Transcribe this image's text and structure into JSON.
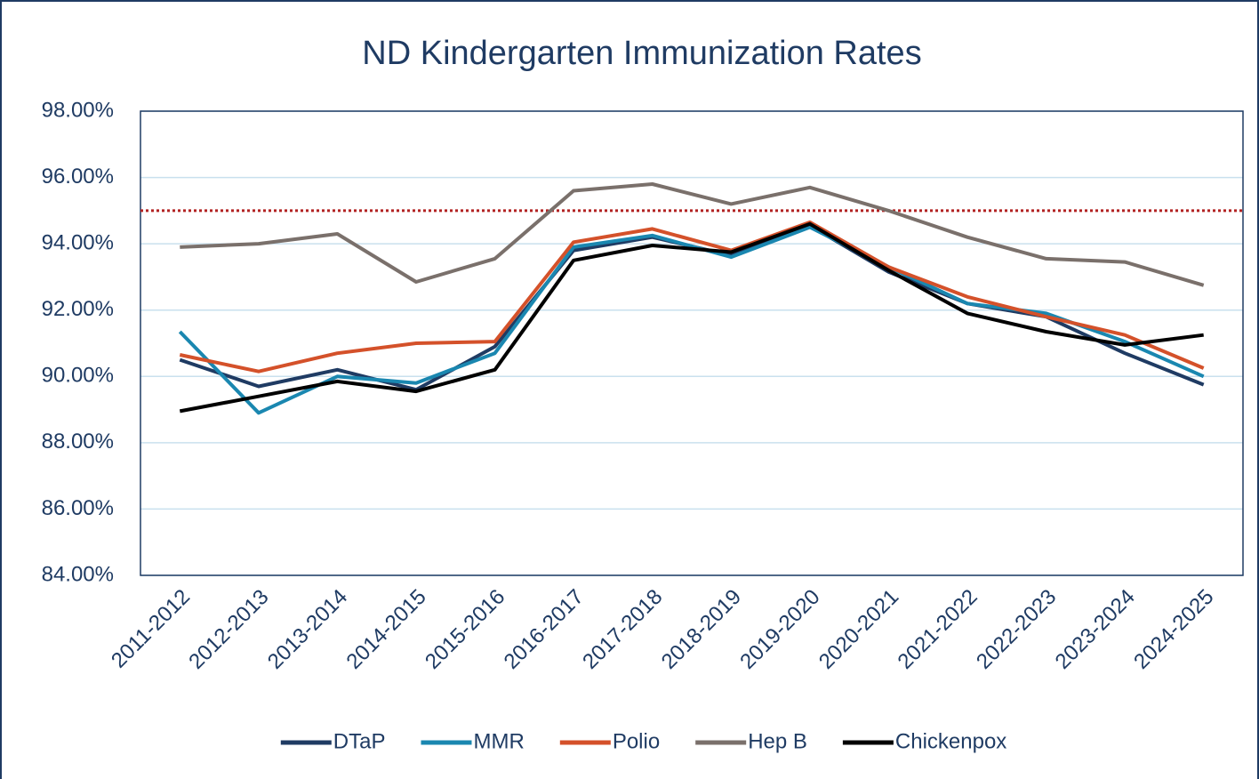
{
  "chart_data": {
    "type": "line",
    "title": "ND Kindergarten Immunization Rates",
    "categories": [
      "2011-2012",
      "2012-2013",
      "2013-2014",
      "2014-2015",
      "2015-2016",
      "2016-2017",
      "2017-2018",
      "2018-2019",
      "2019-2020",
      "2020-2021",
      "2021-2022",
      "2022-2023",
      "2023-2024",
      "2024-2025"
    ],
    "series": [
      {
        "name": "DTaP",
        "color": "#1f3b63",
        "values": [
          90.5,
          89.7,
          90.2,
          89.6,
          90.9,
          93.8,
          94.2,
          93.65,
          94.55,
          93.15,
          92.2,
          91.8,
          90.7,
          89.75
        ]
      },
      {
        "name": "MMR",
        "color": "#1a87b0",
        "values": [
          91.35,
          88.9,
          90.0,
          89.8,
          90.7,
          93.9,
          94.25,
          93.6,
          94.5,
          93.3,
          92.2,
          91.9,
          91.05,
          90.0
        ]
      },
      {
        "name": "Polio",
        "color": "#d4512a",
        "values": [
          90.65,
          90.15,
          90.7,
          91.0,
          91.05,
          94.05,
          94.45,
          93.8,
          94.65,
          93.3,
          92.4,
          91.8,
          91.25,
          90.25
        ]
      },
      {
        "name": "Hep B",
        "color": "#7a706b",
        "values": [
          93.9,
          94.0,
          94.3,
          92.85,
          93.55,
          95.6,
          95.8,
          95.2,
          95.7,
          95.0,
          94.2,
          93.55,
          93.45,
          92.75
        ]
      },
      {
        "name": "Chickenpox",
        "color": "#000000",
        "values": [
          88.95,
          89.4,
          89.85,
          89.55,
          90.2,
          93.5,
          93.95,
          93.75,
          94.6,
          93.2,
          91.9,
          91.35,
          90.95,
          91.25
        ]
      }
    ],
    "ylim": [
      84,
      98
    ],
    "yticks": [
      {
        "value": 84,
        "label": "84.00%"
      },
      {
        "value": 86,
        "label": "86.00%"
      },
      {
        "value": 88,
        "label": "88.00%"
      },
      {
        "value": 90,
        "label": "90.00%"
      },
      {
        "value": 92,
        "label": "92.00%"
      },
      {
        "value": 94,
        "label": "94.00%"
      },
      {
        "value": 96,
        "label": "96.00%"
      },
      {
        "value": 98,
        "label": "98.00%"
      }
    ],
    "grid": true,
    "reference_line": {
      "value": 95,
      "color": "#b22222",
      "style": "dotted"
    },
    "legend": "bottom"
  }
}
